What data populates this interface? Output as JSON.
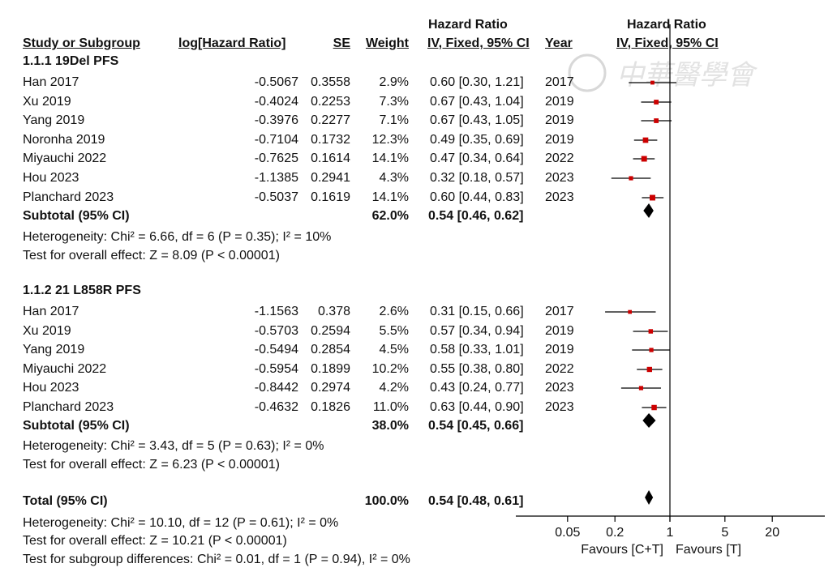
{
  "headers": {
    "study": "Study or Subgroup",
    "loghr": "log[Hazard Ratio]",
    "se": "SE",
    "weight": "Weight",
    "hr_title": "Hazard Ratio",
    "hr_sub": "IV, Fixed, 95% CI",
    "year": "Year",
    "plot_title": "Hazard Ratio",
    "plot_sub": "IV, Fixed, 95% CI"
  },
  "watermark": "中華醫學會",
  "subgroups": [
    {
      "title": "1.1.1 19Del PFS",
      "studies": [
        {
          "study": "Han 2017",
          "loghr": "-0.5067",
          "se": "0.3558",
          "weight": "2.9%",
          "ci": "0.60 [0.30, 1.21]",
          "year": "2017"
        },
        {
          "study": "Xu 2019",
          "loghr": "-0.4024",
          "se": "0.2253",
          "weight": "7.3%",
          "ci": "0.67 [0.43, 1.04]",
          "year": "2019"
        },
        {
          "study": "Yang 2019",
          "loghr": "-0.3976",
          "se": "0.2277",
          "weight": "7.1%",
          "ci": "0.67 [0.43, 1.05]",
          "year": "2019"
        },
        {
          "study": "Noronha 2019",
          "loghr": "-0.7104",
          "se": "0.1732",
          "weight": "12.3%",
          "ci": "0.49 [0.35, 0.69]",
          "year": "2019"
        },
        {
          "study": "Miyauchi 2022",
          "loghr": "-0.7625",
          "se": "0.1614",
          "weight": "14.1%",
          "ci": "0.47 [0.34, 0.64]",
          "year": "2022"
        },
        {
          "study": "Hou 2023",
          "loghr": "-1.1385",
          "se": "0.2941",
          "weight": "4.3%",
          "ci": "0.32 [0.18, 0.57]",
          "year": "2023"
        },
        {
          "study": "Planchard 2023",
          "loghr": "-0.5037",
          "se": "0.1619",
          "weight": "14.1%",
          "ci": "0.60 [0.44, 0.83]",
          "year": "2023"
        }
      ],
      "subtotal_label": "Subtotal (95% CI)",
      "subtotal_weight": "62.0%",
      "subtotal_ci": "0.54 [0.46, 0.62]",
      "heterogeneity": "Heterogeneity: Chi² = 6.66, df = 6 (P = 0.35); I² = 10%",
      "overall_effect": "Test for overall effect: Z = 8.09 (P < 0.00001)"
    },
    {
      "title": "1.1.2 21 L858R PFS",
      "studies": [
        {
          "study": "Han 2017",
          "loghr": "-1.1563",
          "se": "0.378",
          "weight": "2.6%",
          "ci": "0.31 [0.15, 0.66]",
          "year": "2017"
        },
        {
          "study": "Xu 2019",
          "loghr": "-0.5703",
          "se": "0.2594",
          "weight": "5.5%",
          "ci": "0.57 [0.34, 0.94]",
          "year": "2019"
        },
        {
          "study": "Yang 2019",
          "loghr": "-0.5494",
          "se": "0.2854",
          "weight": "4.5%",
          "ci": "0.58 [0.33, 1.01]",
          "year": "2019"
        },
        {
          "study": "Miyauchi 2022",
          "loghr": "-0.5954",
          "se": "0.1899",
          "weight": "10.2%",
          "ci": "0.55 [0.38, 0.80]",
          "year": "2022"
        },
        {
          "study": "Hou 2023",
          "loghr": "-0.8442",
          "se": "0.2974",
          "weight": "4.2%",
          "ci": "0.43 [0.24, 0.77]",
          "year": "2023"
        },
        {
          "study": "Planchard 2023",
          "loghr": "-0.4632",
          "se": "0.1826",
          "weight": "11.0%",
          "ci": "0.63 [0.44, 0.90]",
          "year": "2023"
        }
      ],
      "subtotal_label": "Subtotal (95% CI)",
      "subtotal_weight": "38.0%",
      "subtotal_ci": "0.54 [0.45, 0.66]",
      "heterogeneity": "Heterogeneity: Chi² = 3.43, df = 5 (P = 0.63); I² = 0%",
      "overall_effect": "Test for overall effect: Z = 6.23 (P < 0.00001)"
    }
  ],
  "total": {
    "label": "Total (95% CI)",
    "weight": "100.0%",
    "ci": "0.54 [0.48, 0.61]",
    "heterogeneity": "Heterogeneity: Chi² = 10.10, df = 12 (P = 0.61); I² = 0%",
    "overall_effect": "Test for overall effect: Z = 10.21 (P < 0.00001)",
    "subgroup_diff": "Test for subgroup differences: Chi² = 0.01, df = 1 (P = 0.94), I² = 0%"
  },
  "chart_data": {
    "type": "forest",
    "x_scale": "log",
    "xlim": [
      0.02,
      40
    ],
    "xticks": [
      0.05,
      0.2,
      1,
      5,
      20
    ],
    "xtick_labels": [
      "0.05",
      "0.2",
      "1",
      "5",
      "20"
    ],
    "favours_left": "Favours [C+T]",
    "favours_right": "Favours [T]",
    "colors": {
      "study": "#cc0000",
      "summary": "#000000",
      "lines": "#000000"
    },
    "subgroups": [
      {
        "studies": [
          {
            "hr": 0.6,
            "lo": 0.3,
            "hi": 1.21,
            "weight": 2.9
          },
          {
            "hr": 0.67,
            "lo": 0.43,
            "hi": 1.04,
            "weight": 7.3
          },
          {
            "hr": 0.67,
            "lo": 0.43,
            "hi": 1.05,
            "weight": 7.1
          },
          {
            "hr": 0.49,
            "lo": 0.35,
            "hi": 0.69,
            "weight": 12.3
          },
          {
            "hr": 0.47,
            "lo": 0.34,
            "hi": 0.64,
            "weight": 14.1
          },
          {
            "hr": 0.32,
            "lo": 0.18,
            "hi": 0.57,
            "weight": 4.3
          },
          {
            "hr": 0.6,
            "lo": 0.44,
            "hi": 0.83,
            "weight": 14.1
          }
        ],
        "subtotal": {
          "hr": 0.54,
          "lo": 0.46,
          "hi": 0.62
        }
      },
      {
        "studies": [
          {
            "hr": 0.31,
            "lo": 0.15,
            "hi": 0.66,
            "weight": 2.6
          },
          {
            "hr": 0.57,
            "lo": 0.34,
            "hi": 0.94,
            "weight": 5.5
          },
          {
            "hr": 0.58,
            "lo": 0.33,
            "hi": 1.01,
            "weight": 4.5
          },
          {
            "hr": 0.55,
            "lo": 0.38,
            "hi": 0.8,
            "weight": 10.2
          },
          {
            "hr": 0.43,
            "lo": 0.24,
            "hi": 0.77,
            "weight": 4.2
          },
          {
            "hr": 0.63,
            "lo": 0.44,
            "hi": 0.9,
            "weight": 11.0
          }
        ],
        "subtotal": {
          "hr": 0.54,
          "lo": 0.45,
          "hi": 0.66
        }
      }
    ],
    "total": {
      "hr": 0.54,
      "lo": 0.48,
      "hi": 0.61
    }
  }
}
